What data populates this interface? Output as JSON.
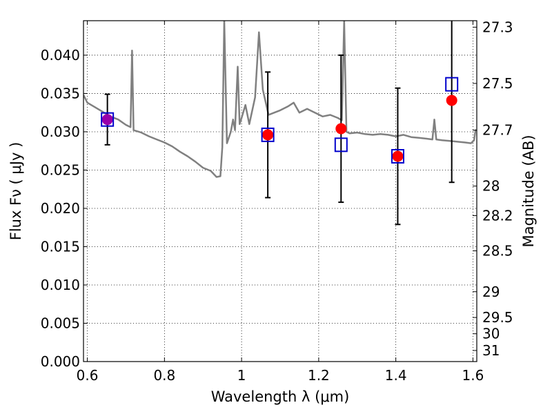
{
  "chart_data": {
    "type": "scatter",
    "title": "",
    "xlabel": "Wavelength  λ (μm)",
    "ylabel": "Flux  Fν  ( μJy )",
    "ylabel_right": "Magnitude (AB)",
    "xlim": [
      0.59,
      1.61
    ],
    "ylim": [
      0.0,
      0.0445
    ],
    "grid": true,
    "colors": {
      "model_line": "#808080",
      "observed_points": "#ff0000",
      "model_squares": "#0000cc",
      "overlap_point": "#9900aa",
      "errorbar": "#000000"
    },
    "x_ticks": [
      {
        "value": 0.6,
        "label": "0.6"
      },
      {
        "value": 0.8,
        "label": "0.8"
      },
      {
        "value": 1.0,
        "label": "1"
      },
      {
        "value": 1.2,
        "label": "1.2"
      },
      {
        "value": 1.4,
        "label": "1.4"
      },
      {
        "value": 1.6,
        "label": "1.6"
      }
    ],
    "y_ticks": [
      {
        "value": 0.0,
        "label": "0.000"
      },
      {
        "value": 0.005,
        "label": "0.005"
      },
      {
        "value": 0.01,
        "label": "0.010"
      },
      {
        "value": 0.015,
        "label": "0.015"
      },
      {
        "value": 0.02,
        "label": "0.020"
      },
      {
        "value": 0.025,
        "label": "0.025"
      },
      {
        "value": 0.03,
        "label": "0.030"
      },
      {
        "value": 0.035,
        "label": "0.035"
      },
      {
        "value": 0.04,
        "label": "0.040"
      }
    ],
    "right_ticks": [
      {
        "value": 27.3,
        "label": "27.3"
      },
      {
        "value": 27.5,
        "label": "27.5"
      },
      {
        "value": 27.7,
        "label": "27.7"
      },
      {
        "value": 28.0,
        "label": "28"
      },
      {
        "value": 28.2,
        "label": "28.2"
      },
      {
        "value": 28.5,
        "label": "28.5"
      },
      {
        "value": 29.0,
        "label": "29"
      },
      {
        "value": 29.5,
        "label": "29.5"
      },
      {
        "value": 30.0,
        "label": "30"
      },
      {
        "value": 31.0,
        "label": "31"
      }
    ],
    "observed": [
      {
        "x": 0.652,
        "y": 0.0316,
        "err": 0.0033
      },
      {
        "x": 1.068,
        "y": 0.0296,
        "err": 0.0082
      },
      {
        "x": 1.258,
        "y": 0.0304,
        "err": 0.0096
      },
      {
        "x": 1.405,
        "y": 0.0268,
        "err": 0.0089
      },
      {
        "x": 1.545,
        "y": 0.0341,
        "err": 0.0107
      }
    ],
    "model_points": [
      {
        "x": 0.652,
        "y": 0.0316
      },
      {
        "x": 1.068,
        "y": 0.0296
      },
      {
        "x": 1.258,
        "y": 0.0283
      },
      {
        "x": 1.405,
        "y": 0.0268
      },
      {
        "x": 1.545,
        "y": 0.0362
      }
    ],
    "model_spectrum": [
      [
        0.59,
        0.0348
      ],
      [
        0.6,
        0.0338
      ],
      [
        0.62,
        0.0332
      ],
      [
        0.64,
        0.0326
      ],
      [
        0.66,
        0.032
      ],
      [
        0.68,
        0.0316
      ],
      [
        0.7,
        0.0309
      ],
      [
        0.712,
        0.0306
      ],
      [
        0.716,
        0.0406
      ],
      [
        0.72,
        0.0302
      ],
      [
        0.74,
        0.0299
      ],
      [
        0.76,
        0.0294
      ],
      [
        0.78,
        0.029
      ],
      [
        0.8,
        0.0286
      ],
      [
        0.82,
        0.0281
      ],
      [
        0.84,
        0.0274
      ],
      [
        0.86,
        0.0268
      ],
      [
        0.88,
        0.0261
      ],
      [
        0.9,
        0.0253
      ],
      [
        0.92,
        0.0249
      ],
      [
        0.935,
        0.0241
      ],
      [
        0.945,
        0.0242
      ],
      [
        0.95,
        0.028
      ],
      [
        0.955,
        0.0445
      ],
      [
        0.962,
        0.0285
      ],
      [
        0.972,
        0.03
      ],
      [
        0.978,
        0.0316
      ],
      [
        0.983,
        0.0302
      ],
      [
        0.99,
        0.0385
      ],
      [
        0.995,
        0.031
      ],
      [
        1.0,
        0.0318
      ],
      [
        1.01,
        0.0335
      ],
      [
        1.02,
        0.031
      ],
      [
        1.035,
        0.0345
      ],
      [
        1.045,
        0.043
      ],
      [
        1.055,
        0.0355
      ],
      [
        1.07,
        0.0322
      ],
      [
        1.085,
        0.0325
      ],
      [
        1.1,
        0.0328
      ],
      [
        1.12,
        0.0333
      ],
      [
        1.135,
        0.0338
      ],
      [
        1.15,
        0.0325
      ],
      [
        1.17,
        0.033
      ],
      [
        1.19,
        0.0325
      ],
      [
        1.21,
        0.032
      ],
      [
        1.23,
        0.0322
      ],
      [
        1.25,
        0.0318
      ],
      [
        1.26,
        0.0315
      ],
      [
        1.266,
        0.0445
      ],
      [
        1.272,
        0.03
      ],
      [
        1.28,
        0.0298
      ],
      [
        1.3,
        0.0299
      ],
      [
        1.32,
        0.0297
      ],
      [
        1.34,
        0.0296
      ],
      [
        1.36,
        0.0297
      ],
      [
        1.38,
        0.0296
      ],
      [
        1.4,
        0.0294
      ],
      [
        1.42,
        0.0296
      ],
      [
        1.44,
        0.0293
      ],
      [
        1.46,
        0.0292
      ],
      [
        1.48,
        0.0291
      ],
      [
        1.495,
        0.029
      ],
      [
        1.5,
        0.0316
      ],
      [
        1.505,
        0.029
      ],
      [
        1.52,
        0.0289
      ],
      [
        1.54,
        0.0288
      ],
      [
        1.56,
        0.0287
      ],
      [
        1.58,
        0.0286
      ],
      [
        1.595,
        0.0285
      ],
      [
        1.603,
        0.0289
      ],
      [
        1.607,
        0.0303
      ]
    ]
  }
}
